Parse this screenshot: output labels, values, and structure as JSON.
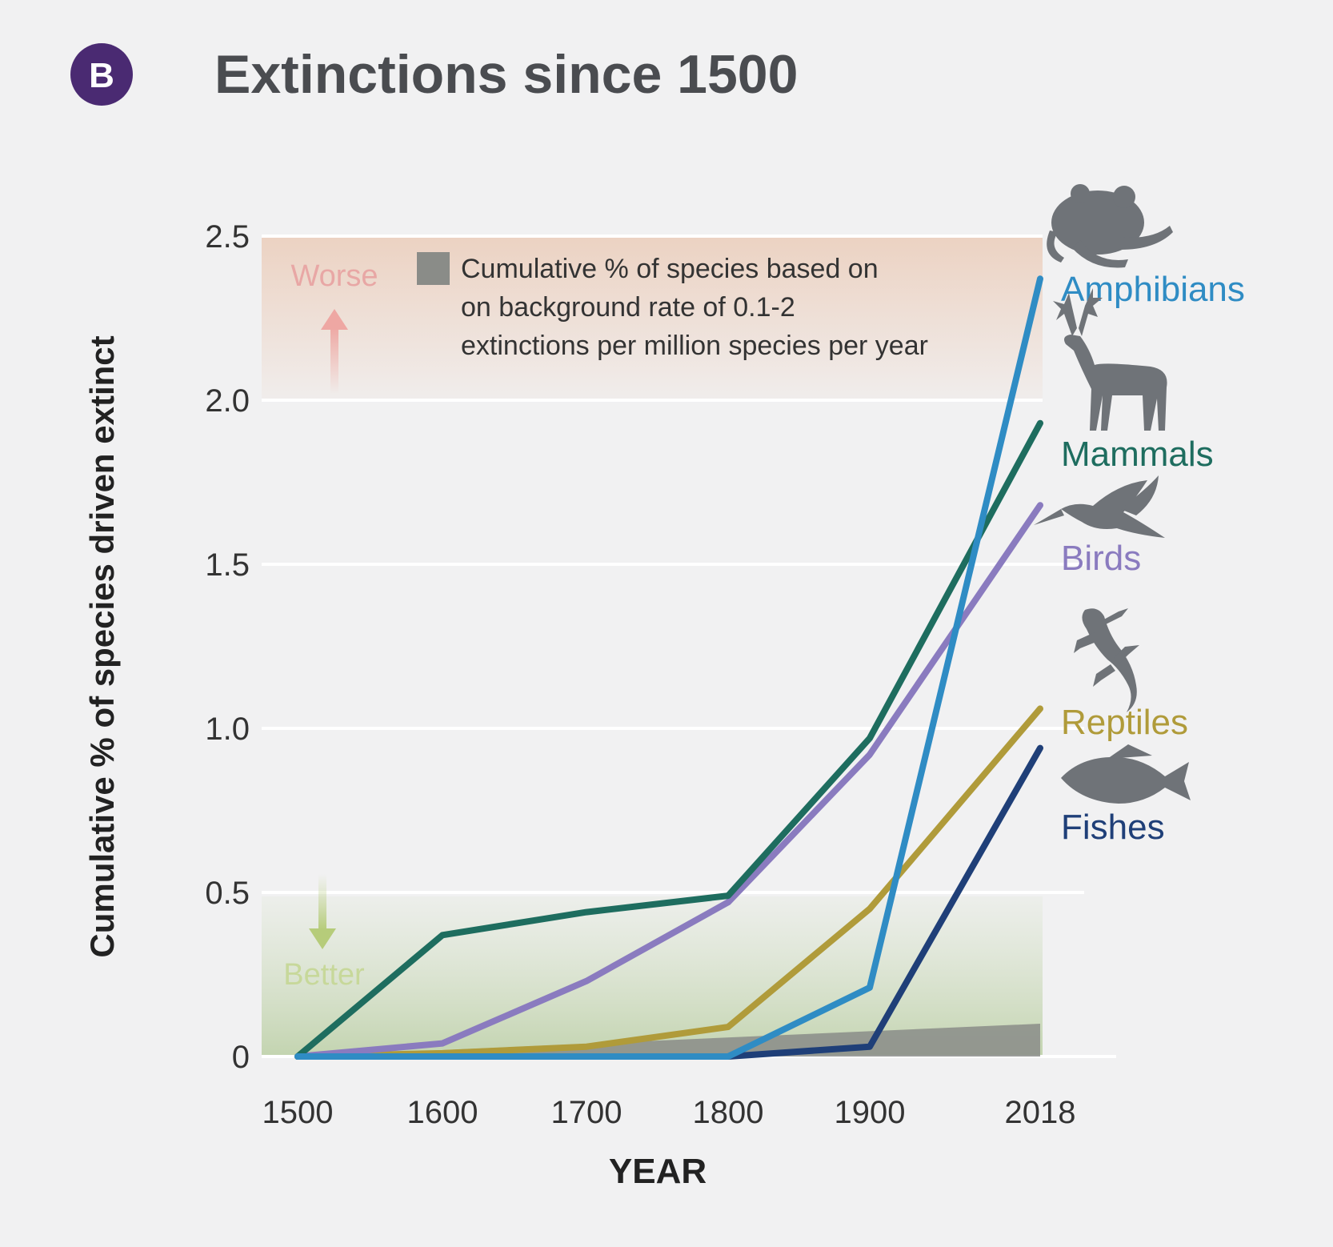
{
  "header": {
    "badge": "B",
    "title": "Extinctions since 1500"
  },
  "colors": {
    "background": "#f1f1f2",
    "badge": "#4a2a72",
    "title": "#4a4c50",
    "worse_band": "#ecd2c2",
    "better_band": "#d2dfc2",
    "background_rate": "#8a8c88",
    "worse_text": "#e8a7a5",
    "better_text": "#c7d89a"
  },
  "annotations": {
    "worse": "Worse",
    "better": "Better",
    "legend_line1": "Cumulative % of species based on",
    "legend_line2": "on background rate of 0.1-2",
    "legend_line3": "extinctions per million species per year"
  },
  "icons": [
    "frog-icon",
    "deer-icon",
    "hummingbird-icon",
    "lizard-icon",
    "fish-icon"
  ],
  "chart_data": {
    "type": "line",
    "title": "Extinctions since 1500",
    "xlabel": "YEAR",
    "ylabel": "Cumulative % of species driven extinct",
    "x": [
      1500,
      1600,
      1700,
      1800,
      1900,
      2018
    ],
    "x_tick_labels": [
      "1500",
      "1600",
      "1700",
      "1800",
      "1900",
      "2018"
    ],
    "ylim": [
      0,
      2.5
    ],
    "y_ticks": [
      0,
      0.5,
      1.0,
      1.5,
      2.0,
      2.5
    ],
    "y_tick_labels": [
      "0",
      "0.5",
      "1.0",
      "1.5",
      "2.0",
      "2.5"
    ],
    "grid": true,
    "series": [
      {
        "name": "Amphibians",
        "color": "#2f8cc4",
        "values": [
          0,
          0,
          0,
          0,
          0.21,
          2.37
        ]
      },
      {
        "name": "Mammals",
        "color": "#1e6d5f",
        "values": [
          0,
          0.37,
          0.44,
          0.49,
          0.97,
          1.93
        ]
      },
      {
        "name": "Birds",
        "color": "#8a7bbf",
        "values": [
          0,
          0.04,
          0.23,
          0.47,
          0.92,
          1.68
        ]
      },
      {
        "name": "Reptiles",
        "color": "#b09b3a",
        "values": [
          0,
          0.01,
          0.03,
          0.09,
          0.45,
          1.06
        ]
      },
      {
        "name": "Fishes",
        "color": "#1f3f78",
        "values": [
          0,
          0,
          0,
          0,
          0.03,
          0.94
        ]
      }
    ],
    "background_rate": {
      "label": "Cumulative % of species based on background rate",
      "x": [
        1500,
        2018
      ],
      "lower": [
        0,
        0
      ],
      "upper": [
        0,
        0.1
      ]
    }
  }
}
